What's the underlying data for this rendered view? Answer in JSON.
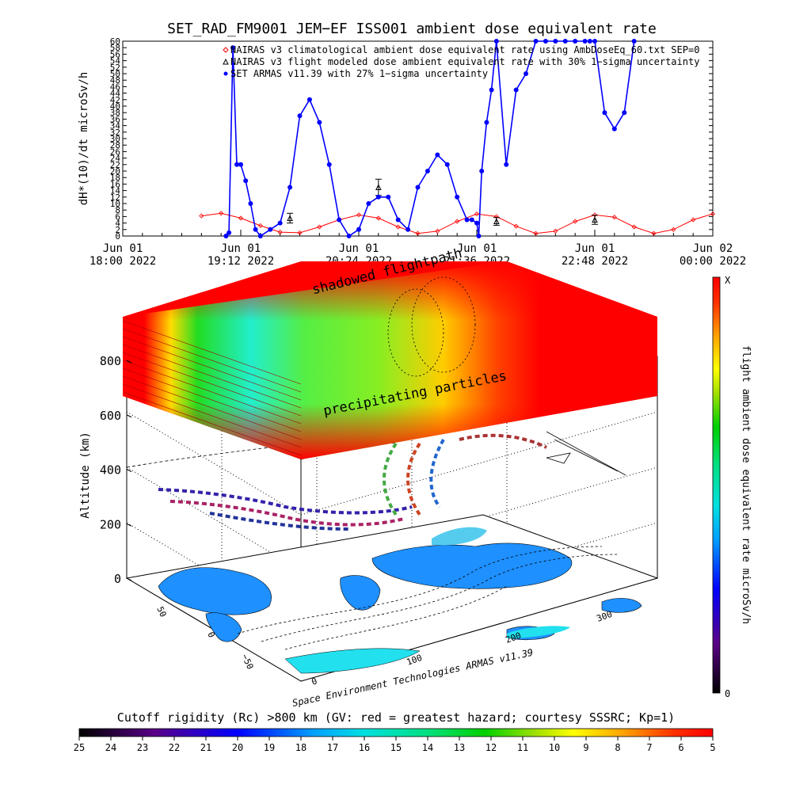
{
  "chart_data": [
    {
      "type": "line",
      "title": "SET_RAD_FM9001  JEM−EF ISS001 ambient dose equivalent rate",
      "ylabel": "dH*(10)/dt microSv/h",
      "ylim": [
        0,
        60
      ],
      "ytick_labels": [
        "0",
        "2",
        "4",
        "6",
        "8",
        "10",
        "12",
        "14",
        "16",
        "18",
        "20",
        "22",
        "24",
        "26",
        "28",
        "30",
        "32",
        "34",
        "36",
        "38",
        "40",
        "42",
        "44",
        "46",
        "48",
        "50",
        "52",
        "54",
        "56",
        "58",
        "60"
      ],
      "xlim": [
        "2022-06-01 18:00",
        "2022-06-02 00:00"
      ],
      "xtick_labels": [
        {
          "day": "Jun 01",
          "time": "18:00 2022"
        },
        {
          "day": "Jun 01",
          "time": "19:12 2022"
        },
        {
          "day": "Jun 01",
          "time": "20:24 2022"
        },
        {
          "day": "Jun 01",
          "time": "21:36 2022"
        },
        {
          "day": "Jun 01",
          "time": "22:48 2022"
        },
        {
          "day": "Jun 02",
          "time": "00:00 2022"
        }
      ],
      "legend_position": "top",
      "series": [
        {
          "name": "NAIRAS v3 climatological ambient dose equivalent rate using AmbDoseEq_60.txt SEP=0",
          "color": "#ff0000",
          "marker": "diamond",
          "x_hours": [
            18.8,
            19.0,
            19.2,
            19.4,
            19.6,
            19.8,
            20.0,
            20.2,
            20.4,
            20.6,
            20.8,
            21.0,
            21.2,
            21.4,
            21.6,
            21.8,
            22.0,
            22.2,
            22.4,
            22.6,
            22.8,
            23.0,
            23.2,
            23.4,
            23.6,
            23.8,
            24.0
          ],
          "values": [
            6.2,
            7.0,
            5.5,
            3.2,
            1.2,
            1.0,
            2.8,
            5.0,
            6.5,
            5.5,
            2.8,
            0.8,
            1.5,
            4.5,
            6.8,
            6.0,
            3.0,
            0.8,
            1.5,
            4.5,
            6.5,
            5.8,
            2.8,
            0.8,
            2.0,
            5.0,
            6.8
          ]
        },
        {
          "name": "NAIRAS v3 flight modeled dose ambient equivalent rate with 30% 1−sigma uncertainty",
          "color": "#000000",
          "marker": "triangle",
          "x_hours": [
            19.7,
            20.6,
            21.8,
            22.8
          ],
          "values": [
            5.5,
            15.0,
            4.5,
            5.0
          ],
          "errors": [
            1.5,
            2.5,
            1.2,
            1.4
          ]
        },
        {
          "name": "SET ARMAS v11.39 with 27% 1−sigma uncertainty",
          "color": "#0000ff",
          "marker": "circle",
          "x_hours": [
            19.05,
            19.08,
            19.12,
            19.16,
            19.2,
            19.25,
            19.3,
            19.35,
            19.4,
            19.5,
            19.6,
            19.7,
            19.8,
            19.9,
            20.0,
            20.1,
            20.2,
            20.3,
            20.4,
            20.5,
            20.6,
            20.7,
            20.8,
            20.9,
            21.0,
            21.1,
            21.2,
            21.3,
            21.4,
            21.5,
            21.55,
            21.6,
            21.62,
            21.65,
            21.7,
            21.75,
            21.8,
            21.9,
            22.0,
            22.1,
            22.2,
            22.3,
            22.4,
            22.5,
            22.6,
            22.7,
            22.75,
            22.8,
            22.9,
            23.0,
            23.1,
            23.2
          ],
          "values": [
            0,
            1,
            58,
            22,
            22,
            17,
            10,
            2,
            0,
            2,
            4,
            15,
            37,
            42,
            35,
            22,
            5,
            0,
            2,
            10,
            12,
            12,
            5,
            2,
            15,
            20,
            25,
            22,
            12,
            5,
            5,
            4,
            0,
            20,
            35,
            45,
            60,
            22,
            45,
            50,
            60,
            60,
            60,
            60,
            60,
            60,
            60,
            60,
            38,
            33,
            38,
            60
          ]
        }
      ]
    },
    {
      "type": "heatmap",
      "zlabel": "Altitude (km)",
      "ztick_labels": [
        "0",
        "200",
        "400",
        "600",
        "800"
      ],
      "lat_tick_labels": [
        "50",
        "0",
        "−50"
      ],
      "lon_tick_labels": [
        "0",
        "100",
        "200",
        "300"
      ],
      "layer_labels": [
        "shadowed flightpath",
        "precipitating particles"
      ],
      "colorbar_label": "flight ambient dose equivalent rate microSv/h",
      "colorbar_top_label": "X",
      "colorbar_bottom_label": "0",
      "credit": "Space Environment Technologies ARMAS v11.39"
    },
    {
      "type": "colorbar",
      "title": "Cutoff rigidity (Rc) >800 km (GV: red = greatest hazard; courtesy SSSRC; Kp=1)",
      "tick_labels": [
        "25",
        "24",
        "23",
        "22",
        "21",
        "20",
        "19",
        "18",
        "17",
        "16",
        "15",
        "14",
        "13",
        "12",
        "11",
        "10",
        "9",
        "8",
        "7",
        "6",
        "5"
      ]
    }
  ]
}
